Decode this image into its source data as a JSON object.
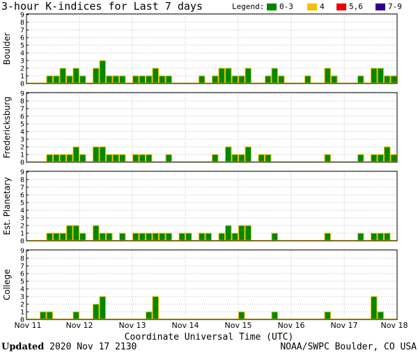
{
  "header": {
    "title": "3-hour K-indices for Last 7 days",
    "legend_label": "Legend:",
    "legend": [
      {
        "label": "0-3",
        "color": "#008800"
      },
      {
        "label": "4",
        "color": "#f2c200"
      },
      {
        "label": "5,6",
        "color": "#ee0000"
      },
      {
        "label": "7-9",
        "color": "#330088"
      }
    ]
  },
  "colors": {
    "bar_fill": "#008800",
    "bar_edge": "#f2c200",
    "grid": "#bbbbbb"
  },
  "chart_data": {
    "type": "bar",
    "xlabel": "Coordinate Universal Time (UTC)",
    "ylim": [
      0,
      9
    ],
    "yticks": [
      "0",
      "1",
      "2",
      "3",
      "4",
      "5",
      "6",
      "7",
      "8",
      "9"
    ],
    "x_tick_labels": [
      "Nov 11",
      "Nov 12",
      "Nov 13",
      "Nov 14",
      "Nov 15",
      "Nov 16",
      "Nov 17",
      "Nov 18"
    ],
    "interval_hours": 3,
    "grid": true,
    "panels": [
      {
        "name": "Boulder",
        "values": [
          0,
          0,
          0,
          1,
          1,
          2,
          1,
          2,
          1,
          0,
          2,
          3,
          1,
          1,
          1,
          0,
          1,
          1,
          1,
          2,
          1,
          1,
          0,
          0,
          0,
          0,
          1,
          0,
          1,
          2,
          2,
          1,
          1,
          2,
          0,
          0,
          1,
          2,
          1,
          0,
          0,
          0,
          1,
          0,
          0,
          2,
          1,
          0,
          0,
          0,
          1,
          0,
          2,
          2,
          1,
          1,
          0
        ]
      },
      {
        "name": "Fredericksburg",
        "values": [
          0,
          0,
          0,
          1,
          1,
          1,
          1,
          2,
          1,
          0,
          2,
          2,
          1,
          1,
          1,
          0,
          1,
          1,
          1,
          0,
          0,
          1,
          0,
          0,
          0,
          0,
          0,
          0,
          1,
          0,
          2,
          1,
          1,
          2,
          0,
          1,
          1,
          0,
          0,
          0,
          0,
          0,
          0,
          0,
          0,
          1,
          0,
          0,
          0,
          0,
          1,
          0,
          1,
          1,
          2,
          1,
          0
        ]
      },
      {
        "name": "Est. Planetary",
        "values": [
          0,
          0,
          0,
          1,
          1,
          1,
          2,
          2,
          1,
          0,
          2,
          1,
          1,
          0,
          1,
          0,
          1,
          1,
          1,
          1,
          1,
          1,
          0,
          1,
          1,
          0,
          1,
          1,
          0,
          1,
          2,
          1,
          2,
          2,
          0,
          0,
          0,
          1,
          0,
          0,
          0,
          0,
          0,
          0,
          0,
          1,
          0,
          0,
          0,
          0,
          1,
          0,
          1,
          1,
          1,
          0,
          0
        ]
      },
      {
        "name": "College",
        "values": [
          0,
          0,
          1,
          1,
          0,
          0,
          0,
          1,
          0,
          0,
          2,
          3,
          0,
          0,
          0,
          0,
          0,
          0,
          1,
          3,
          0,
          0,
          0,
          0,
          0,
          0,
          0,
          0,
          0,
          0,
          0,
          0,
          1,
          0,
          0,
          0,
          0,
          1,
          0,
          0,
          0,
          0,
          0,
          0,
          0,
          1,
          0,
          0,
          0,
          0,
          0,
          0,
          3,
          1,
          0,
          0,
          0
        ]
      }
    ]
  },
  "footer": {
    "updated_label": "Updated",
    "updated_value": "2020 Nov 17 2130",
    "credit": "NOAA/SWPC Boulder, CO USA"
  }
}
